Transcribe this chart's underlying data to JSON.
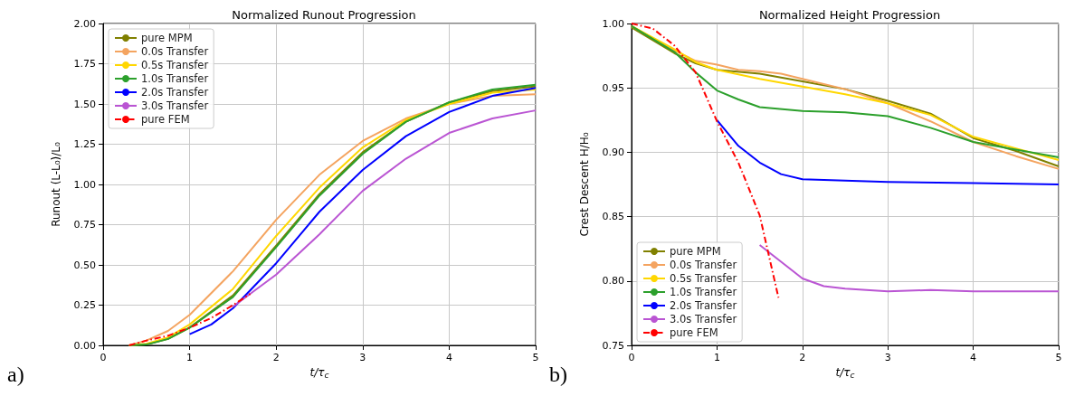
{
  "chart_data": [
    {
      "type": "line",
      "title": "Normalized Runout Progression",
      "xlabel": "t/τ$_{c}$",
      "ylabel": "Runout (L-L₀)/L₀",
      "annotations": [
        "a)"
      ],
      "xlim": [
        0,
        5
      ],
      "xticks": [
        0,
        1,
        2,
        3,
        4,
        5
      ],
      "ylim": [
        0,
        2
      ],
      "yticks": [
        {
          "value": 0,
          "label": "0.00"
        },
        {
          "value": 0.25,
          "label": "0.25"
        },
        {
          "value": 0.5,
          "label": "0.50"
        },
        {
          "value": 0.75,
          "label": "0.75"
        },
        {
          "value": 1,
          "label": "1.00"
        },
        {
          "value": 1.25,
          "label": "1.25"
        },
        {
          "value": 1.5,
          "label": "1.50"
        },
        {
          "value": 1.75,
          "label": "1.75"
        },
        {
          "value": 2,
          "label": "2.00"
        }
      ],
      "grid": true,
      "legend": "top left",
      "marker": "none",
      "series": [
        {
          "name": "pure MPM",
          "color": "#808000",
          "x": [
            0.3,
            0.5,
            0.75,
            1,
            1.5,
            2,
            2.5,
            3,
            3.5,
            4,
            4.5,
            5
          ],
          "values": [
            0,
            0.005,
            0.04,
            0.11,
            0.31,
            0.62,
            0.94,
            1.2,
            1.39,
            1.51,
            1.58,
            1.61
          ]
        },
        {
          "name": "0.0s Transfer",
          "color": "#f4a460",
          "x": [
            0.3,
            0.5,
            0.75,
            1,
            1.5,
            2,
            2.5,
            3,
            3.5,
            4,
            4.5,
            5
          ],
          "values": [
            0,
            0.03,
            0.09,
            0.19,
            0.46,
            0.78,
            1.06,
            1.27,
            1.41,
            1.5,
            1.55,
            1.56
          ]
        },
        {
          "name": "0.5s Transfer",
          "color": "#ffd700",
          "x": [
            0.3,
            0.5,
            0.75,
            1,
            1.5,
            2,
            2.5,
            3,
            3.5,
            4,
            4.5,
            5
          ],
          "values": [
            0,
            0.01,
            0.05,
            0.13,
            0.35,
            0.68,
            0.98,
            1.23,
            1.4,
            1.5,
            1.57,
            1.59
          ]
        },
        {
          "name": "1.0s Transfer",
          "color": "#2ca02c",
          "x": [
            0.3,
            0.5,
            0.75,
            1,
            1.5,
            2,
            2.5,
            3,
            3.5,
            4,
            4.5,
            5
          ],
          "values": [
            0,
            0.005,
            0.04,
            0.11,
            0.3,
            0.61,
            0.93,
            1.19,
            1.39,
            1.51,
            1.59,
            1.62
          ]
        },
        {
          "name": "2.0s Transfer",
          "color": "#0000ff",
          "x": [
            1,
            1.25,
            1.5,
            2,
            2.5,
            3,
            3.5,
            4,
            4.5,
            5
          ],
          "values": [
            0.07,
            0.13,
            0.23,
            0.51,
            0.83,
            1.09,
            1.3,
            1.45,
            1.55,
            1.6
          ]
        },
        {
          "name": "3.0s Transfer",
          "color": "#ba55d3",
          "x": [
            1.5,
            1.7,
            2,
            2.5,
            3,
            3.5,
            4,
            4.5,
            5
          ],
          "values": [
            0.24,
            0.32,
            0.44,
            0.69,
            0.96,
            1.16,
            1.32,
            1.41,
            1.46
          ]
        },
        {
          "name": "pure FEM",
          "color": "#ff0000",
          "line_style": "dashdot",
          "x": [
            0.3,
            0.5,
            0.75,
            1,
            1.25,
            1.5,
            1.7
          ],
          "values": [
            0,
            0.03,
            0.06,
            0.11,
            0.17,
            0.25,
            0.32
          ]
        }
      ]
    },
    {
      "type": "line",
      "title": "Normalized Height Progression",
      "xlabel": "t/τ$_{c}$",
      "ylabel": "Crest Descent H/H₀",
      "annotations": [
        "b)"
      ],
      "xlim": [
        0,
        5
      ],
      "xticks": [
        0,
        1,
        2,
        3,
        4,
        5
      ],
      "ylim": [
        0.75,
        1
      ],
      "yticks": [
        {
          "value": 0.75,
          "label": "0.75"
        },
        {
          "value": 0.8,
          "label": "0.80"
        },
        {
          "value": 0.85,
          "label": "0.85"
        },
        {
          "value": 0.9,
          "label": "0.90"
        },
        {
          "value": 0.95,
          "label": "0.95"
        },
        {
          "value": 1,
          "label": "1.00"
        }
      ],
      "grid": true,
      "legend": "bottom left",
      "marker": "none",
      "series": [
        {
          "name": "pure MPM",
          "color": "#808000",
          "x": [
            0,
            0.5,
            0.75,
            1,
            1.5,
            2,
            2.5,
            3,
            3.5,
            4,
            4.5,
            5
          ],
          "values": [
            0.997,
            0.977,
            0.969,
            0.964,
            0.961,
            0.955,
            0.949,
            0.94,
            0.93,
            0.911,
            0.901,
            0.889
          ]
        },
        {
          "name": "0.0s Transfer",
          "color": "#f4a460",
          "x": [
            0,
            0.5,
            0.75,
            1,
            1.25,
            1.5,
            1.75,
            2,
            2.5,
            3,
            3.5,
            4,
            4.5,
            5
          ],
          "values": [
            0.998,
            0.979,
            0.971,
            0.968,
            0.964,
            0.963,
            0.961,
            0.957,
            0.949,
            0.938,
            0.924,
            0.908,
            0.897,
            0.887
          ]
        },
        {
          "name": "0.5s Transfer",
          "color": "#ffd700",
          "x": [
            0,
            0.5,
            0.75,
            1,
            1.5,
            2,
            2.5,
            3,
            3.5,
            4,
            4.5,
            5
          ],
          "values": [
            0.998,
            0.98,
            0.97,
            0.964,
            0.957,
            0.951,
            0.945,
            0.938,
            0.929,
            0.912,
            0.903,
            0.894
          ]
        },
        {
          "name": "1.0s Transfer",
          "color": "#2ca02c",
          "x": [
            0,
            0.5,
            0.75,
            1,
            1.25,
            1.5,
            2,
            2.5,
            3,
            3.5,
            4,
            4.5,
            5
          ],
          "values": [
            0.998,
            0.978,
            0.962,
            0.948,
            0.941,
            0.935,
            0.932,
            0.931,
            0.928,
            0.919,
            0.908,
            0.902,
            0.896
          ]
        },
        {
          "name": "2.0s Transfer",
          "color": "#0000ff",
          "x": [
            1,
            1.25,
            1.5,
            1.75,
            2,
            2.5,
            3,
            4,
            5
          ],
          "values": [
            0.925,
            0.905,
            0.892,
            0.883,
            0.879,
            0.878,
            0.877,
            0.876,
            0.875
          ]
        },
        {
          "name": "3.0s Transfer",
          "color": "#ba55d3",
          "x": [
            1.5,
            1.75,
            2,
            2.25,
            2.5,
            3,
            3.5,
            4,
            5
          ],
          "values": [
            0.828,
            0.815,
            0.802,
            0.796,
            0.794,
            0.792,
            0.793,
            0.792,
            0.792
          ]
        },
        {
          "name": "pure FEM",
          "color": "#ff0000",
          "line_style": "dashdot",
          "x": [
            0,
            0.25,
            0.5,
            0.75,
            1,
            1.25,
            1.5,
            1.72
          ],
          "values": [
            1,
            0.996,
            0.983,
            0.962,
            0.924,
            0.892,
            0.851,
            0.787
          ]
        }
      ]
    }
  ]
}
